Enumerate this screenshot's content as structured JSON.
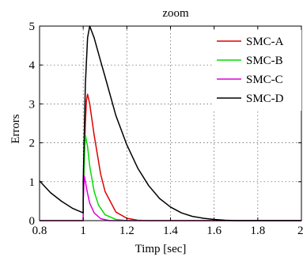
{
  "chart_data": {
    "type": "line",
    "title": "zoom",
    "xlabel": "Timp [sec]",
    "ylabel": "Errors",
    "xlim": [
      0.8,
      2
    ],
    "ylim": [
      0,
      5
    ],
    "xticks": [
      0.8,
      1,
      1.2,
      1.4,
      1.6,
      1.8,
      2
    ],
    "xtick_labels": [
      "0.8",
      "1",
      "1.2",
      "1.4",
      "1.6",
      "1.8",
      "2"
    ],
    "yticks": [
      0,
      1,
      2,
      3,
      4,
      5
    ],
    "ytick_labels": [
      "0",
      "1",
      "2",
      "3",
      "4",
      "5"
    ],
    "grid": true,
    "legend_position": "top-right",
    "series": [
      {
        "name": "SMC-A",
        "color": "#dd0000",
        "x": [
          0.8,
          1.0,
          1.0,
          1.005,
          1.01,
          1.015,
          1.02,
          1.03,
          1.05,
          1.08,
          1.1,
          1.15,
          1.2,
          1.25,
          1.3,
          2.0
        ],
        "y": [
          0.0,
          0.0,
          0.6,
          1.6,
          2.5,
          3.1,
          3.25,
          3.0,
          2.2,
          1.2,
          0.75,
          0.22,
          0.06,
          0.01,
          0.0,
          0.0
        ]
      },
      {
        "name": "SMC-B",
        "color": "#00dd00",
        "x": [
          0.8,
          1.0,
          1.0,
          1.005,
          1.01,
          1.02,
          1.03,
          1.05,
          1.07,
          1.1,
          1.15,
          1.2,
          2.0
        ],
        "y": [
          0.0,
          0.0,
          0.6,
          1.5,
          2.2,
          1.9,
          1.4,
          0.75,
          0.4,
          0.15,
          0.03,
          0.0,
          0.0
        ]
      },
      {
        "name": "SMC-C",
        "color": "#dd00dd",
        "x": [
          0.8,
          1.0,
          1.0,
          1.005,
          1.01,
          1.02,
          1.03,
          1.05,
          1.08,
          1.12,
          2.0
        ],
        "y": [
          0.0,
          0.0,
          0.5,
          1.15,
          1.0,
          0.7,
          0.45,
          0.2,
          0.05,
          0.0,
          0.0
        ]
      },
      {
        "name": "SMC-D",
        "color": "#000000",
        "x": [
          0.8,
          0.85,
          0.9,
          0.95,
          1.0,
          1.0,
          1.01,
          1.02,
          1.03,
          1.05,
          1.08,
          1.1,
          1.15,
          1.2,
          1.25,
          1.3,
          1.35,
          1.4,
          1.45,
          1.5,
          1.55,
          1.6,
          1.65,
          1.7,
          1.8,
          2.0
        ],
        "y": [
          1.02,
          0.72,
          0.5,
          0.32,
          0.2,
          1.0,
          3.5,
          4.7,
          5.0,
          4.7,
          4.1,
          3.7,
          2.7,
          1.95,
          1.35,
          0.9,
          0.57,
          0.35,
          0.2,
          0.11,
          0.06,
          0.03,
          0.01,
          0.0,
          0.0,
          0.0
        ]
      }
    ]
  }
}
